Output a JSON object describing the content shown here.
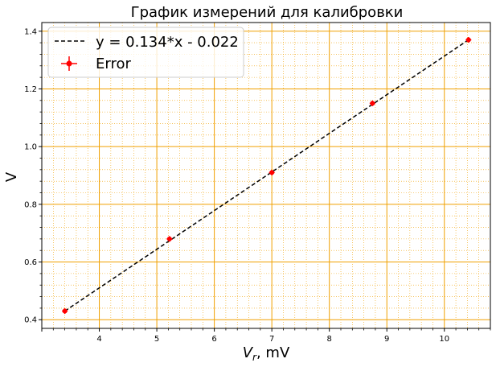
{
  "chart_data": {
    "type": "scatter",
    "title": "График измерений для калибровки",
    "xlabel_main": "V",
    "xlabel_sub": "r",
    "xlabel_unit": ", mV",
    "ylabel": "V",
    "xlim": [
      3.0,
      10.8
    ],
    "ylim": [
      0.37,
      1.43
    ],
    "x_ticks": [
      4,
      5,
      6,
      7,
      8,
      9,
      10
    ],
    "y_ticks": [
      0.4,
      0.6,
      0.8,
      1.0,
      1.2,
      1.4
    ],
    "y_tick_labels": [
      "0.4",
      "0.6",
      "0.8",
      "1.0",
      "1.2",
      "1.4"
    ],
    "grid": "major and minor, orange",
    "legend_position": "top-left",
    "colors": {
      "grid": "#f0a000",
      "points": "#ff0000",
      "fit": "#000000"
    },
    "series": [
      {
        "name": "Error",
        "kind": "errorbar",
        "x": [
          3.4,
          5.22,
          7.0,
          8.75,
          10.42
        ],
        "y": [
          0.43,
          0.68,
          0.91,
          1.15,
          1.37
        ]
      },
      {
        "name": "y = 0.134*x - 0.022",
        "kind": "line-dashed",
        "x": [
          3.4,
          10.42
        ],
        "y": [
          0.43,
          1.37
        ]
      }
    ]
  }
}
